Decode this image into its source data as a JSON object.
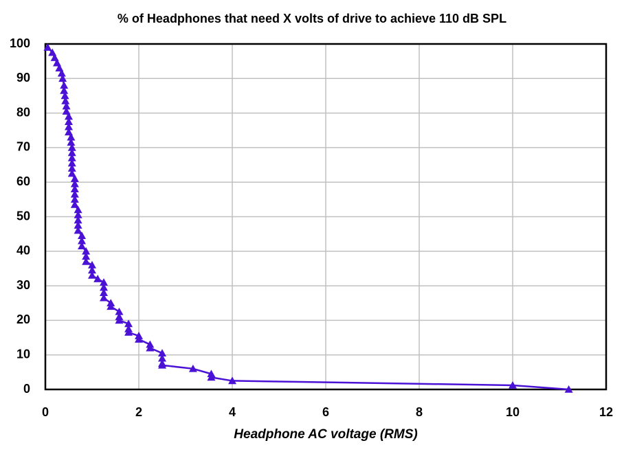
{
  "chart_data": {
    "type": "line",
    "title": "% of Headphones that need X volts of drive to achieve 110 dB SPL",
    "x_label": "Headphone AC voltage (RMS)",
    "x": [
      0.05,
      0.15,
      0.2,
      0.25,
      0.3,
      0.35,
      0.37,
      0.4,
      0.4,
      0.42,
      0.43,
      0.45,
      0.45,
      0.5,
      0.5,
      0.5,
      0.5,
      0.55,
      0.55,
      0.57,
      0.57,
      0.57,
      0.57,
      0.57,
      0.57,
      0.63,
      0.63,
      0.63,
      0.63,
      0.63,
      0.63,
      0.7,
      0.7,
      0.7,
      0.7,
      0.7,
      0.78,
      0.78,
      0.78,
      0.87,
      0.87,
      0.87,
      1.0,
      1.0,
      1.0,
      1.12,
      1.25,
      1.25,
      1.25,
      1.25,
      1.4,
      1.4,
      1.58,
      1.58,
      1.58,
      1.78,
      1.78,
      1.78,
      2.0,
      2.0,
      2.24,
      2.24,
      2.5,
      2.5,
      2.5,
      2.5,
      3.16,
      3.55,
      3.55,
      4.0,
      10,
      11.2
    ],
    "values": [
      99,
      97.5,
      96,
      94.5,
      93,
      91.5,
      90,
      88,
      86.5,
      85,
      83.5,
      82,
      80.5,
      79,
      77.5,
      76,
      74.5,
      73,
      71.5,
      70,
      68.5,
      67,
      65.5,
      64,
      62.5,
      61,
      59.5,
      58,
      56.5,
      55,
      53.5,
      52,
      50.5,
      49,
      47.5,
      46,
      44.5,
      43,
      41.5,
      40,
      38.5,
      37,
      36,
      34.5,
      33,
      32,
      31,
      29.5,
      28,
      26.5,
      25,
      24,
      22.5,
      21,
      20,
      19,
      17.5,
      16.5,
      15.5,
      14.5,
      13,
      12,
      10.5,
      9,
      7.5,
      7,
      6,
      4.5,
      3.5,
      2.5,
      1.2,
      0
    ],
    "color": "#4b12d6",
    "xlim": [
      0,
      12
    ],
    "xticks": [
      0,
      2,
      4,
      6,
      8,
      10,
      12
    ],
    "ylim": [
      0,
      100
    ],
    "yticks": [
      0,
      10,
      20,
      30,
      40,
      50,
      60,
      70,
      80,
      90,
      100
    ],
    "grid": true
  }
}
